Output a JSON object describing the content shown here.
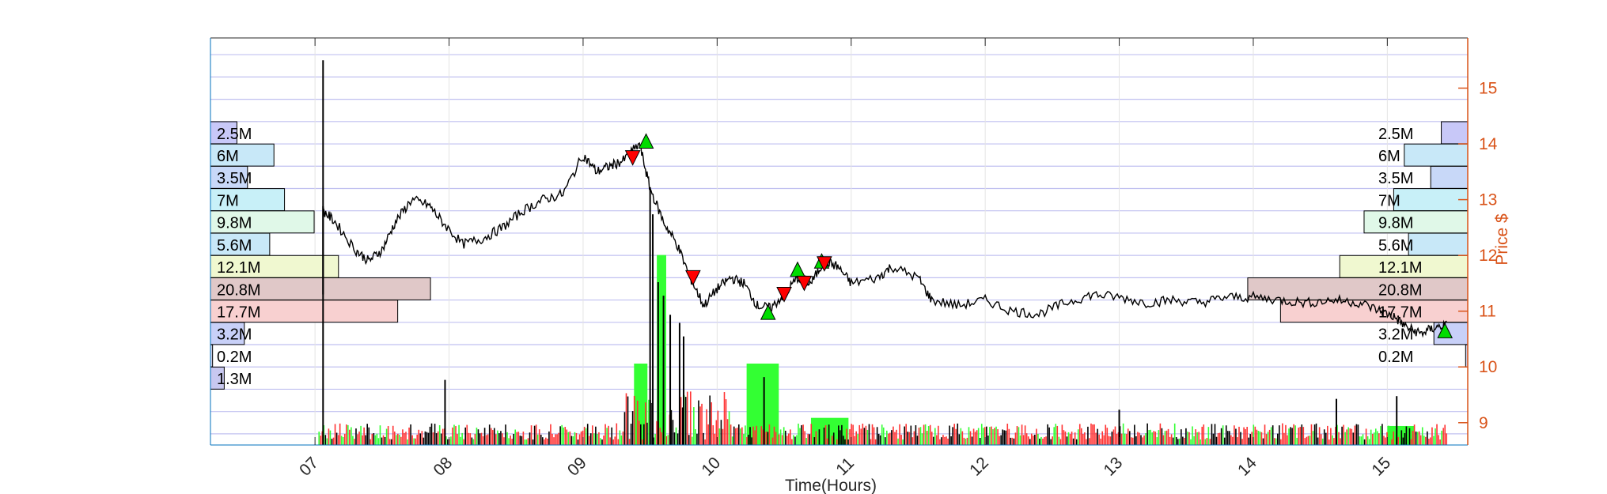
{
  "chart_data": {
    "type": "candlestick",
    "xlabel": "Time(Hours)",
    "ylabel": "Price $",
    "x_ticks": [
      "07",
      "08",
      "09",
      "10",
      "11",
      "12",
      "13",
      "14",
      "15"
    ],
    "x_tick_values": [
      7,
      8,
      9,
      10,
      11,
      12,
      13,
      14,
      15
    ],
    "xlim": [
      6.22,
      15.6
    ],
    "y_ticks": [
      9,
      10,
      11,
      12,
      13,
      14,
      15
    ],
    "ylim": [
      8.6,
      15.9
    ],
    "grid": true,
    "price_path": [
      [
        7.06,
        12.8
      ],
      [
        7.15,
        12.6
      ],
      [
        7.3,
        12.1
      ],
      [
        7.4,
        11.9
      ],
      [
        7.5,
        12.1
      ],
      [
        7.6,
        12.6
      ],
      [
        7.72,
        13.0
      ],
      [
        7.85,
        12.9
      ],
      [
        7.95,
        12.6
      ],
      [
        8.1,
        12.2
      ],
      [
        8.25,
        12.3
      ],
      [
        8.4,
        12.5
      ],
      [
        8.55,
        12.8
      ],
      [
        8.7,
        13.0
      ],
      [
        8.85,
        13.1
      ],
      [
        9.0,
        13.8
      ],
      [
        9.1,
        13.5
      ],
      [
        9.2,
        13.6
      ],
      [
        9.3,
        13.7
      ],
      [
        9.42,
        14.0
      ],
      [
        9.5,
        13.2
      ],
      [
        9.6,
        12.6
      ],
      [
        9.7,
        12.2
      ],
      [
        9.8,
        11.6
      ],
      [
        9.9,
        11.1
      ],
      [
        10.0,
        11.4
      ],
      [
        10.1,
        11.6
      ],
      [
        10.2,
        11.5
      ],
      [
        10.3,
        11.1
      ],
      [
        10.4,
        11.05
      ],
      [
        10.5,
        11.3
      ],
      [
        10.6,
        11.6
      ],
      [
        10.7,
        11.5
      ],
      [
        10.8,
        11.9
      ],
      [
        10.9,
        11.8
      ],
      [
        11.0,
        11.5
      ],
      [
        11.2,
        11.6
      ],
      [
        11.3,
        11.8
      ],
      [
        11.5,
        11.6
      ],
      [
        11.6,
        11.2
      ],
      [
        11.8,
        11.1
      ],
      [
        12.0,
        11.2
      ],
      [
        12.2,
        11.0
      ],
      [
        12.4,
        10.95
      ],
      [
        12.6,
        11.15
      ],
      [
        12.8,
        11.3
      ],
      [
        13.0,
        11.25
      ],
      [
        13.2,
        11.15
      ],
      [
        13.4,
        11.2
      ],
      [
        13.6,
        11.15
      ],
      [
        13.8,
        11.25
      ],
      [
        14.0,
        11.25
      ],
      [
        14.2,
        11.2
      ],
      [
        14.4,
        11.15
      ],
      [
        14.6,
        11.2
      ],
      [
        14.8,
        11.15
      ],
      [
        14.95,
        11.0
      ],
      [
        15.05,
        10.9
      ],
      [
        15.15,
        10.7
      ],
      [
        15.25,
        10.6
      ],
      [
        15.35,
        10.7
      ],
      [
        15.45,
        10.75
      ]
    ],
    "buy_signals": [
      [
        9.47,
        14.05
      ],
      [
        10.38,
        10.98
      ],
      [
        10.6,
        11.75
      ],
      [
        10.78,
        11.9
      ],
      [
        15.43,
        10.65
      ]
    ],
    "sell_signals": [
      [
        9.37,
        13.75
      ],
      [
        9.82,
        11.6
      ],
      [
        10.5,
        11.3
      ],
      [
        10.65,
        11.5
      ],
      [
        10.8,
        11.85
      ]
    ],
    "volume_profile_left": [
      {
        "price": 14.2,
        "label": "2.5M",
        "value": 2.5,
        "color": "#C8C8F8"
      },
      {
        "price": 13.8,
        "label": "6M",
        "value": 6,
        "color": "#C8E8F8"
      },
      {
        "price": 13.4,
        "label": "3.5M",
        "value": 3.5,
        "color": "#C8D8F8"
      },
      {
        "price": 13.0,
        "label": "7M",
        "value": 7,
        "color": "#C8F0F8"
      },
      {
        "price": 12.6,
        "label": "9.8M",
        "value": 9.8,
        "color": "#E0F8E8"
      },
      {
        "price": 12.2,
        "label": "5.6M",
        "value": 5.6,
        "color": "#C8E8F8"
      },
      {
        "price": 11.8,
        "label": "12.1M",
        "value": 12.1,
        "color": "#F0F8D0"
      },
      {
        "price": 11.4,
        "label": "20.8M",
        "value": 20.8,
        "color": "#E0C8C8"
      },
      {
        "price": 11.0,
        "label": "17.7M",
        "value": 17.7,
        "color": "#F8D0D0"
      },
      {
        "price": 10.6,
        "label": "3.2M",
        "value": 3.2,
        "color": "#C8D0F8"
      },
      {
        "price": 10.2,
        "label": "0.2M",
        "value": 0.2,
        "color": "#D0D0E8"
      },
      {
        "price": 9.8,
        "label": "1.3M",
        "value": 1.3,
        "color": "#C8C8F0"
      }
    ],
    "volume_profile_right": [
      {
        "price": 14.2,
        "label": "2.5M",
        "value": 2.5,
        "color": "#C8C8F8"
      },
      {
        "price": 13.8,
        "label": "6M",
        "value": 6,
        "color": "#C8E8F8"
      },
      {
        "price": 13.4,
        "label": "3.5M",
        "value": 3.5,
        "color": "#C8D8F8"
      },
      {
        "price": 13.0,
        "label": "7M",
        "value": 7,
        "color": "#C8F0F8"
      },
      {
        "price": 12.6,
        "label": "9.8M",
        "value": 9.8,
        "color": "#E0F8E8"
      },
      {
        "price": 12.2,
        "label": "5.6M",
        "value": 5.6,
        "color": "#C8E8F8"
      },
      {
        "price": 11.8,
        "label": "12.1M",
        "value": 12.1,
        "color": "#F0F8D0"
      },
      {
        "price": 11.4,
        "label": "20.8M",
        "value": 20.8,
        "color": "#E0C8C8"
      },
      {
        "price": 11.0,
        "label": "17.7M",
        "value": 17.7,
        "color": "#F8D0D0"
      },
      {
        "price": 10.6,
        "label": "3.2M",
        "value": 3.2,
        "color": "#C8D0F8"
      },
      {
        "price": 10.2,
        "label": "0.2M",
        "value": 0.2,
        "color": "#D0D0E8"
      }
    ],
    "volume_ylim": [
      0,
      90
    ],
    "volume_blocks": [
      {
        "x0": 9.38,
        "x1": 9.48,
        "value": 30,
        "color": "#33FF33"
      },
      {
        "x0": 9.55,
        "x1": 9.62,
        "value": 70,
        "color": "#33FF33"
      },
      {
        "x0": 10.22,
        "x1": 10.46,
        "value": 30,
        "color": "#33FF33"
      },
      {
        "x0": 10.7,
        "x1": 10.98,
        "value": 10,
        "color": "#33FF33"
      },
      {
        "x0": 15.0,
        "x1": 15.2,
        "value": 7,
        "color": "#33FF33"
      }
    ],
    "volume_spikes": [
      [
        7.06,
        88
      ],
      [
        7.97,
        24
      ],
      [
        9.5,
        95
      ],
      [
        9.52,
        85
      ],
      [
        9.56,
        60
      ],
      [
        9.6,
        55
      ],
      [
        9.65,
        48
      ],
      [
        9.72,
        45
      ],
      [
        9.75,
        40
      ],
      [
        10.35,
        25
      ],
      [
        15.07,
        18
      ],
      [
        14.62,
        17
      ],
      [
        13.0,
        13
      ]
    ],
    "volume_colors": {
      "up": "#33FF33",
      "down": "#FF3333",
      "neutral": "#000000"
    },
    "colors": {
      "price": "#000000",
      "buy": "#00DD00",
      "sell": "#FF0000",
      "right_axis": "#D95319",
      "grid": "#C0C0F0",
      "frame": "#0072BD"
    }
  }
}
